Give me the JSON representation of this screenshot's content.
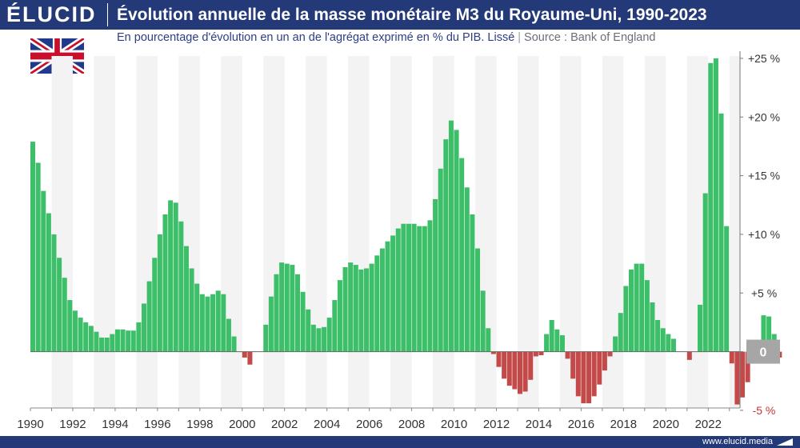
{
  "header": {
    "logo": "ÉLUCID",
    "title": "Évolution annuelle de la masse monétaire M3 du Royaume-Uni, 1990-2023"
  },
  "subtitle": {
    "text": "En pourcentage d'évolution en un an de l'agrégat exprimé en % du PIB. Lissé",
    "separator": "|",
    "source": "Source : Bank of England"
  },
  "footer": {
    "url": "www.elucid.media"
  },
  "colors": {
    "header_bg": "#243a78",
    "positive": "#3dbf6a",
    "negative": "#c44a4a",
    "band": "#f3f3f3",
    "zero_badge": "#a6a6a6",
    "negative_label": "#cc3333"
  },
  "chart_data": {
    "type": "bar",
    "title": "Évolution annuelle de la masse monétaire M3 du Royaume-Uni, 1990-2023",
    "unit": "%",
    "ylim": [
      -4.8,
      25.2
    ],
    "xlim": [
      1990,
      2023.5
    ],
    "y_tick_labels": [
      {
        "value": 25,
        "label": "+25 %"
      },
      {
        "value": 20,
        "label": "+20 %"
      },
      {
        "value": 15,
        "label": "+15 %"
      },
      {
        "value": 10,
        "label": "+10 %"
      },
      {
        "value": 5,
        "label": "+5 %"
      },
      {
        "value": 0,
        "label": "0"
      },
      {
        "value": -5,
        "label": "-5 %"
      }
    ],
    "x_tick_labels": [
      "1990",
      "1992",
      "1994",
      "1996",
      "1998",
      "2000",
      "2002",
      "2004",
      "2006",
      "2008",
      "2010",
      "2012",
      "2014",
      "2016",
      "2018",
      "2020",
      "2022"
    ],
    "frequency": "quarterly",
    "start": 1990,
    "values": [
      17.9,
      16.1,
      13.7,
      11.8,
      10.0,
      8.0,
      6.3,
      4.4,
      3.5,
      2.9,
      2.5,
      2.2,
      1.7,
      1.2,
      1.2,
      1.5,
      1.9,
      1.9,
      1.8,
      1.8,
      2.5,
      4.1,
      6.0,
      8.0,
      10.0,
      11.7,
      12.9,
      12.7,
      11.1,
      9.0,
      7.1,
      5.8,
      4.9,
      4.7,
      4.9,
      5.2,
      4.9,
      2.8,
      1.3,
      0.0,
      -0.5,
      -1.1,
      0.0,
      0.0,
      2.3,
      4.7,
      6.6,
      7.6,
      7.5,
      7.4,
      6.6,
      5.1,
      3.6,
      2.3,
      2.0,
      2.1,
      2.9,
      4.4,
      6.1,
      7.2,
      7.6,
      7.4,
      7.0,
      7.1,
      7.5,
      8.2,
      8.8,
      9.4,
      9.9,
      10.5,
      10.9,
      10.9,
      10.9,
      10.7,
      10.7,
      11.2,
      13.0,
      15.6,
      18.1,
      19.7,
      18.9,
      16.5,
      14.0,
      11.7,
      8.8,
      5.2,
      2.0,
      -0.2,
      -1.3,
      -2.3,
      -2.9,
      -3.2,
      -3.6,
      -3.4,
      -2.4,
      -0.4,
      -0.3,
      1.5,
      2.7,
      1.9,
      1.4,
      -0.6,
      -2.3,
      -3.8,
      -4.4,
      -4.4,
      -3.8,
      -2.8,
      -1.6,
      -0.4,
      1.3,
      3.3,
      5.6,
      7.0,
      7.5,
      7.5,
      6.1,
      4.2,
      2.7,
      2.0,
      1.5,
      1.1,
      0.0,
      0.0,
      -0.7,
      0.0,
      4.0,
      13.5,
      24.6,
      25.0,
      20.3,
      10.7,
      -1.0,
      -4.5,
      -3.9,
      -2.6,
      -1.0,
      0.6,
      3.1,
      3.0,
      1.5,
      -0.5
    ]
  }
}
